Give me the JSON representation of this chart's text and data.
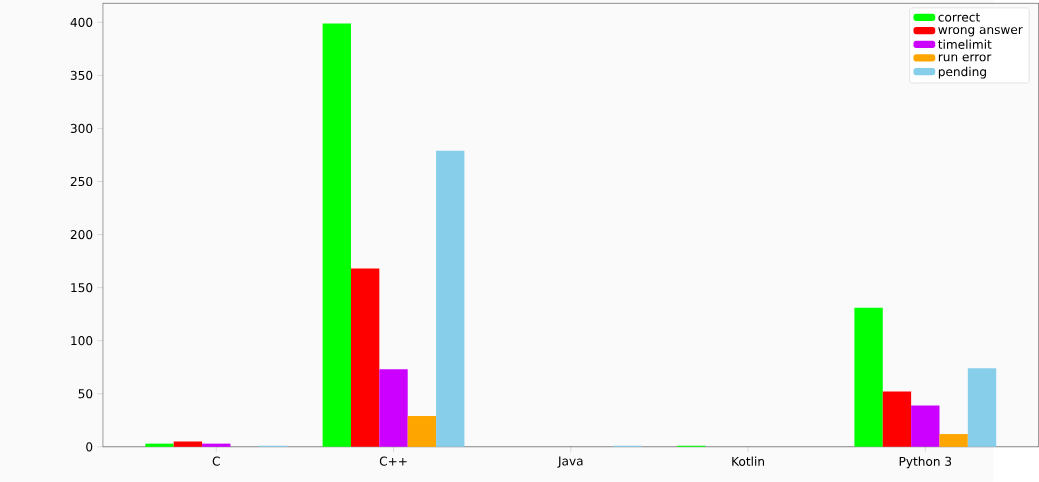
{
  "chart_data": {
    "type": "bar",
    "categories": [
      "C",
      "C++",
      "Java",
      "Kotlin",
      "Python 3"
    ],
    "series": [
      {
        "name": "correct",
        "color": "#00ff00",
        "values": [
          3,
          399,
          0,
          1,
          131
        ]
      },
      {
        "name": "wrong answer",
        "color": "#ff0000",
        "values": [
          5,
          168,
          0,
          0,
          52
        ]
      },
      {
        "name": "timelimit",
        "color": "#cc00ff",
        "values": [
          3,
          73,
          0,
          0,
          39
        ]
      },
      {
        "name": "run error",
        "color": "#ffa500",
        "values": [
          0,
          29,
          0,
          0,
          12
        ]
      },
      {
        "name": "pending",
        "color": "#87ceeb",
        "values": [
          1,
          279,
          1,
          0,
          74
        ]
      }
    ],
    "ylim": [
      0,
      418
    ],
    "yticks": [
      0,
      50,
      100,
      150,
      200,
      250,
      300,
      350,
      400
    ],
    "grid": false,
    "legend": "top right"
  }
}
